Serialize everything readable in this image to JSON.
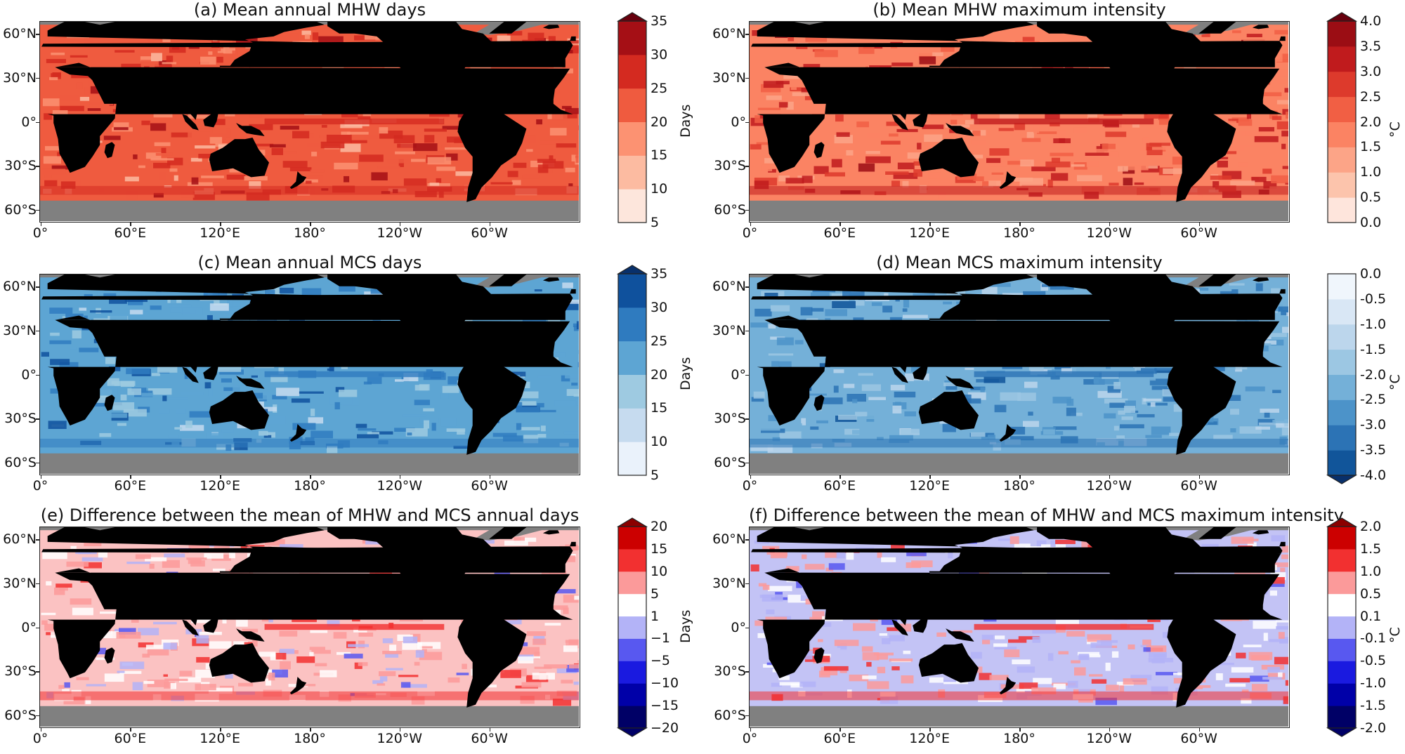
{
  "lat_labels": [
    "60°N",
    "30°N",
    "0°",
    "30°S",
    "60°S"
  ],
  "lat_values": [
    60,
    30,
    0,
    -30,
    -60
  ],
  "lon_labels": [
    "0°",
    "60°E",
    "120°E",
    "180°",
    "120°W",
    "60°W"
  ],
  "lon_values": [
    0,
    60,
    120,
    180,
    240,
    300
  ],
  "lat_range": [
    -68,
    68
  ],
  "lon_range": [
    0,
    360
  ],
  "colors": {
    "land": "#000000",
    "ice": "#808080"
  },
  "panels": [
    {
      "title": "(a) Mean annual MHW days",
      "unit": "Days",
      "ticks": [
        "5",
        "10",
        "15",
        "20",
        "25",
        "30",
        "35"
      ],
      "colors": [
        "#fde6dc",
        "#fcbba1",
        "#fc9272",
        "#ef5b3f",
        "#d42a20",
        "#a50f15",
        "#67000d"
      ],
      "ocean": "#ef5b3f",
      "extend_top": true,
      "extend_bottom": false
    },
    {
      "title": "(b) Mean MHW maximum intensity",
      "unit": "°C",
      "ticks": [
        "0.0",
        "0.5",
        "1.0",
        "1.5",
        "2.0",
        "2.5",
        "3.0",
        "3.5",
        "4.0"
      ],
      "colors": [
        "#fee5dc",
        "#fcc4ac",
        "#fca487",
        "#fb8363",
        "#f15f44",
        "#dd3a2c",
        "#c01b1d",
        "#9b0d14",
        "#67000d"
      ],
      "ocean": "#fb8363",
      "extend_top": true,
      "extend_bottom": false
    },
    {
      "title": "(c) Mean annual MCS days",
      "unit": "Days",
      "ticks": [
        "5",
        "10",
        "15",
        "20",
        "25",
        "30",
        "35"
      ],
      "colors": [
        "#eaf2fb",
        "#c6dbef",
        "#9ecae1",
        "#5da5d3",
        "#2f7bbf",
        "#0f519d",
        "#08306b"
      ],
      "ocean": "#5da5d3",
      "extend_top": true,
      "extend_bottom": false
    },
    {
      "title": "(d) Mean MCS maximum intensity",
      "unit": "°C",
      "ticks": [
        "0.0",
        "-0.5",
        "-1.0",
        "-1.5",
        "-2.0",
        "-2.5",
        "-3.0",
        "-3.5",
        "-4.0"
      ],
      "colors": [
        "#f0f6fc",
        "#d9e7f5",
        "#bcd6ec",
        "#9cc7e3",
        "#74b0d8",
        "#4c93c9",
        "#2c73b5",
        "#11559a",
        "#08306b"
      ],
      "ocean": "#74b0d8",
      "extend_top": false,
      "extend_bottom": true,
      "reverse": true
    },
    {
      "title": "(e) Difference between the mean of MHW and MCS annual days",
      "unit": "Days",
      "ticks": [
        "20",
        "15",
        "10",
        "5",
        "1",
        "−1",
        "−5",
        "−10",
        "−15",
        "−20"
      ],
      "colors": [
        "#8b0000",
        "#cc0000",
        "#f23030",
        "#fb9a9a",
        "#ffffff",
        "#b3b3f7",
        "#5858f0",
        "#1a1ae0",
        "#0000a8",
        "#000066"
      ],
      "ocean": "#fbc2c2",
      "extend_top": true,
      "extend_bottom": true,
      "reverse": true
    },
    {
      "title": "(f) Difference between the mean of MHW and MCS maximum intensity",
      "unit": "°C",
      "ticks": [
        "2.0",
        "1.5",
        "1.0",
        "0.5",
        "0.1",
        "-0.1",
        "-0.5",
        "-1.0",
        "-1.5",
        "-2.0"
      ],
      "colors": [
        "#8b0000",
        "#cc0000",
        "#f23030",
        "#fb9a9a",
        "#ffffff",
        "#b3b3f7",
        "#5858f0",
        "#1a1ae0",
        "#0000a8",
        "#000066"
      ],
      "ocean": "#c3c3f5",
      "extend_top": true,
      "extend_bottom": true,
      "reverse": true
    }
  ]
}
